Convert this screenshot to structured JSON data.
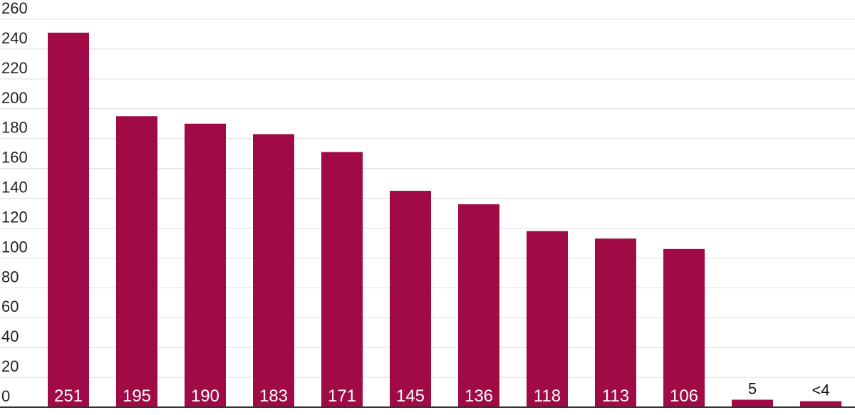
{
  "chart_data": {
    "type": "bar",
    "title": "",
    "xlabel": "",
    "ylabel": "",
    "ylim": [
      0,
      260
    ],
    "yticks": [
      0,
      20,
      40,
      60,
      80,
      100,
      120,
      140,
      160,
      180,
      200,
      220,
      240,
      260
    ],
    "grid": true,
    "bar_color": "#a00b45",
    "values": [
      251,
      195,
      190,
      183,
      171,
      145,
      136,
      118,
      113,
      106,
      5,
      4
    ],
    "labels": [
      "251",
      "195",
      "190",
      "183",
      "171",
      "145",
      "136",
      "118",
      "113",
      "106",
      "5",
      "<4"
    ]
  }
}
